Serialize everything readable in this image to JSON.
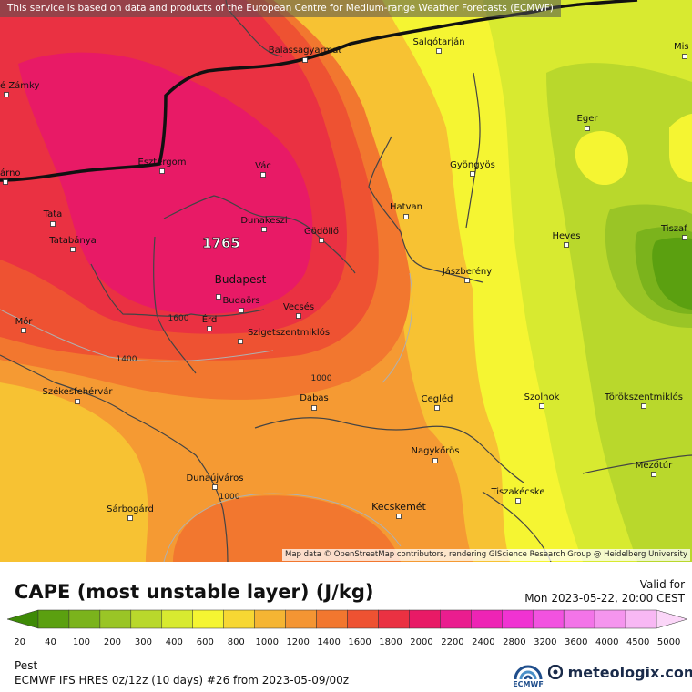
{
  "header": {
    "notice": "This service is based on data and products of the European Centre for Medium-range Weather Forecasts (ECMWF)"
  },
  "map": {
    "credit": "Map data © OpenStreetMap contributors, rendering GIScience Research Group @ Heidelberg University",
    "peak_value": "1765",
    "contour_labels": [
      "1600",
      "1400",
      "1000",
      "1000"
    ],
    "cities": [
      {
        "name": "Balassagyarmat"
      },
      {
        "name": "Salgótarján"
      },
      {
        "name": "Mis"
      },
      {
        "name": "é Zámky"
      },
      {
        "name": "Eger"
      },
      {
        "name": "Esztergom"
      },
      {
        "name": "Vác"
      },
      {
        "name": "Gyöngyös"
      },
      {
        "name": "árno"
      },
      {
        "name": "Tata"
      },
      {
        "name": "Dunakeszi"
      },
      {
        "name": "Gödöllő"
      },
      {
        "name": "Hatvan"
      },
      {
        "name": "Tatabánya"
      },
      {
        "name": "Heves"
      },
      {
        "name": "Tiszaf"
      },
      {
        "name": "Budapest"
      },
      {
        "name": "Jászberény"
      },
      {
        "name": "Budaörs"
      },
      {
        "name": "Mór"
      },
      {
        "name": "Érd"
      },
      {
        "name": "Vecsés"
      },
      {
        "name": "Szigetszentmiklós"
      },
      {
        "name": "Székesfehérvár"
      },
      {
        "name": "Dabas"
      },
      {
        "name": "Cegléd"
      },
      {
        "name": "Szolnok"
      },
      {
        "name": "Törökszentmiklós"
      },
      {
        "name": "Nagykőrös"
      },
      {
        "name": "Mezőtúr"
      },
      {
        "name": "Dunaújváros"
      },
      {
        "name": "Tiszakécske"
      },
      {
        "name": "Sárbogárd"
      },
      {
        "name": "Kecskemét"
      }
    ]
  },
  "title": "CAPE (most unstable layer) (J/kg)",
  "valid": {
    "label": "Valid for",
    "time": "Mon 2023-05-22, 20:00 CEST"
  },
  "legend": {
    "ticks": [
      "20",
      "40",
      "100",
      "200",
      "300",
      "400",
      "600",
      "800",
      "1000",
      "1200",
      "1400",
      "1600",
      "1800",
      "2000",
      "2200",
      "2400",
      "2800",
      "3200",
      "3600",
      "4000",
      "4500",
      "5000"
    ],
    "colors": [
      "#3e8a06",
      "#5ba010",
      "#7bb31c",
      "#9ac526",
      "#b9d82c",
      "#d8ea30",
      "#f5f532",
      "#f7d733",
      "#f5b533",
      "#f49533",
      "#f2772f",
      "#ee5232",
      "#ea3142",
      "#e81a66",
      "#ea1d8f",
      "#ee24b5",
      "#f033d2",
      "#f252e0",
      "#f374e8",
      "#f595ee",
      "#f8b8f4",
      "#fbd6f8"
    ]
  },
  "footer": {
    "location": "Pest",
    "run_info": "ECMWF IFS HRES 0z/12z (10 days) #26 from  2023-05-09/00z",
    "ecmwf_text": "ECMWF",
    "brand": "meteologix.com"
  },
  "icons": {
    "city_marker": "square-marker-icon",
    "brand_dot": "circle-logo-icon",
    "ecmwf": "ecmwf-logo-icon"
  }
}
